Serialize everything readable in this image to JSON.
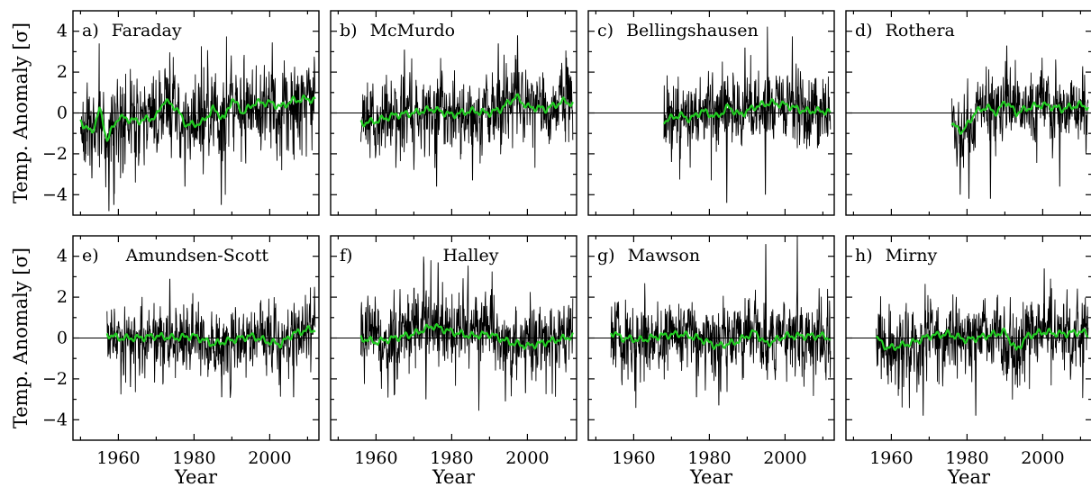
{
  "chart_data": {
    "type": "line",
    "layout": "2x4 panel grid",
    "shared_x_axis": {
      "label": "Year",
      "lim": [
        1948,
        2013
      ],
      "ticks": [
        1960,
        1980,
        2000
      ]
    },
    "shared_y_axis": {
      "label": "Temp. Anomaly [σ]",
      "lim": [
        -5,
        5
      ],
      "ticks": [
        -4,
        -2,
        0,
        2,
        4
      ]
    },
    "colors": {
      "monthly": "#000000",
      "smoothed": "#22cc22"
    },
    "panels": [
      {
        "letter": "a)",
        "station": "Faraday",
        "start": 1950,
        "end": 2012,
        "amp": 1.35,
        "seed": 11,
        "extremes": [
          [
            1957.5,
            -4.8
          ],
          [
            1958.8,
            -4.5
          ],
          [
            1977.6,
            -3.6
          ],
          [
            1987.2,
            -4.5
          ],
          [
            1953,
            -3.2
          ]
        ],
        "smooth": [
          [
            1950,
            -0.4
          ],
          [
            1953,
            -1.0
          ],
          [
            1955,
            0.2
          ],
          [
            1957,
            -1.3
          ],
          [
            1960,
            -0.2
          ],
          [
            1965,
            -0.4
          ],
          [
            1970,
            -0.2
          ],
          [
            1972,
            0.6
          ],
          [
            1975,
            0.3
          ],
          [
            1978,
            -0.6
          ],
          [
            1982,
            -0.5
          ],
          [
            1985,
            0.2
          ],
          [
            1988,
            -0.3
          ],
          [
            1990,
            0.7
          ],
          [
            1993,
            0.0
          ],
          [
            1996,
            0.5
          ],
          [
            2000,
            0.5
          ],
          [
            2003,
            0.3
          ],
          [
            2006,
            0.6
          ],
          [
            2010,
            0.7
          ],
          [
            2012,
            0.6
          ]
        ]
      },
      {
        "letter": "b)",
        "station": "McMurdo",
        "start": 1956,
        "end": 2012,
        "amp": 1.1,
        "seed": 23,
        "extremes": [
          [
            1967.5,
            3.1
          ],
          [
            1992.3,
            3.4
          ],
          [
            1997.4,
            3.8
          ],
          [
            1976,
            -3.6
          ],
          [
            1985.5,
            -3.3
          ]
        ],
        "smooth": [
          [
            1956,
            -0.5
          ],
          [
            1960,
            -0.4
          ],
          [
            1965,
            -0.1
          ],
          [
            1970,
            0.0
          ],
          [
            1975,
            0.2
          ],
          [
            1980,
            -0.1
          ],
          [
            1985,
            0.1
          ],
          [
            1990,
            0.0
          ],
          [
            1993,
            0.2
          ],
          [
            1997,
            0.8
          ],
          [
            2000,
            0.3
          ],
          [
            2005,
            0.2
          ],
          [
            2010,
            0.6
          ],
          [
            2012,
            0.4
          ]
        ]
      },
      {
        "letter": "c)",
        "station": "Bellingshausen",
        "start": 1968,
        "end": 2012,
        "amp": 1.05,
        "seed": 37,
        "extremes": [
          [
            1989.4,
            3.2
          ],
          [
            1984.6,
            -4.4
          ],
          [
            1994.8,
            -4.0
          ],
          [
            1970,
            -2.4
          ]
        ],
        "smooth": [
          [
            1968,
            -0.4
          ],
          [
            1972,
            -0.1
          ],
          [
            1975,
            -0.3
          ],
          [
            1978,
            0.1
          ],
          [
            1982,
            -0.2
          ],
          [
            1985,
            0.3
          ],
          [
            1988,
            -0.1
          ],
          [
            1992,
            0.3
          ],
          [
            1996,
            0.5
          ],
          [
            2000,
            0.4
          ],
          [
            2005,
            0.1
          ],
          [
            2010,
            0.1
          ],
          [
            2012,
            0.0
          ]
        ]
      },
      {
        "letter": "d)",
        "station": "Rothera",
        "start": 1976,
        "end": 2012,
        "amp": 1.05,
        "seed": 41,
        "extremes": [
          [
            1978.2,
            -4.0
          ],
          [
            1980.5,
            -4.2
          ],
          [
            1986.2,
            -4.2
          ],
          [
            1990.5,
            3.3
          ],
          [
            2004.5,
            -3.6
          ]
        ],
        "smooth": [
          [
            1976,
            -0.6
          ],
          [
            1979,
            -0.9
          ],
          [
            1982,
            0.0
          ],
          [
            1985,
            0.3
          ],
          [
            1988,
            0.0
          ],
          [
            1990,
            0.6
          ],
          [
            1993,
            0.0
          ],
          [
            1997,
            0.3
          ],
          [
            2000,
            0.4
          ],
          [
            2005,
            0.2
          ],
          [
            2010,
            0.4
          ],
          [
            2012,
            0.3
          ]
        ]
      },
      {
        "letter": "e)",
        "station": "Amundsen-Scott",
        "start": 1957,
        "end": 2012,
        "amp": 1.05,
        "seed": 53,
        "extremes": [
          [
            1987.3,
            -2.9
          ],
          [
            2006.3,
            -2.9
          ],
          [
            1963.2,
            -2.4
          ],
          [
            1973.6,
            2.9
          ]
        ],
        "smooth": [
          [
            1957,
            0.2
          ],
          [
            1960,
            0.0
          ],
          [
            1965,
            0.0
          ],
          [
            1970,
            0.1
          ],
          [
            1975,
            0.0
          ],
          [
            1980,
            0.1
          ],
          [
            1985,
            -0.3
          ],
          [
            1990,
            -0.1
          ],
          [
            1995,
            0.1
          ],
          [
            2000,
            -0.2
          ],
          [
            2003,
            -0.3
          ],
          [
            2006,
            0.2
          ],
          [
            2010,
            0.4
          ],
          [
            2012,
            0.4
          ]
        ]
      },
      {
        "letter": "f)",
        "station": "Halley",
        "start": 1956,
        "end": 2012,
        "amp": 1.1,
        "seed": 67,
        "extremes": [
          [
            1976.4,
            3.7
          ],
          [
            1964.8,
            -2.8
          ],
          [
            1973.2,
            -3.0
          ],
          [
            1994.2,
            -3.1
          ],
          [
            1999.5,
            -2.7
          ]
        ],
        "smooth": [
          [
            1956,
            0.0
          ],
          [
            1960,
            -0.2
          ],
          [
            1965,
            0.0
          ],
          [
            1970,
            0.2
          ],
          [
            1975,
            0.6
          ],
          [
            1980,
            0.3
          ],
          [
            1985,
            0.1
          ],
          [
            1990,
            0.2
          ],
          [
            1995,
            -0.2
          ],
          [
            2000,
            -0.4
          ],
          [
            2005,
            -0.2
          ],
          [
            2010,
            0.0
          ],
          [
            2012,
            0.1
          ]
        ]
      },
      {
        "letter": "g)",
        "station": "Mawson",
        "start": 1954,
        "end": 2012,
        "amp": 1.1,
        "seed": 79,
        "extremes": [
          [
            1994.9,
            4.6
          ],
          [
            1982.5,
            -3.3
          ],
          [
            1960.3,
            -2.6
          ],
          [
            1976.6,
            -2.9
          ]
        ],
        "smooth": [
          [
            1954,
            0.3
          ],
          [
            1957,
            0.0
          ],
          [
            1962,
            -0.1
          ],
          [
            1967,
            0.1
          ],
          [
            1972,
            0.2
          ],
          [
            1977,
            0.0
          ],
          [
            1982,
            -0.4
          ],
          [
            1987,
            -0.2
          ],
          [
            1992,
            0.3
          ],
          [
            1995,
            -0.3
          ],
          [
            2000,
            0.1
          ],
          [
            2005,
            0.1
          ],
          [
            2010,
            0.1
          ],
          [
            2012,
            0.0
          ]
        ]
      },
      {
        "letter": "h)",
        "station": "Mirny",
        "start": 1956,
        "end": 2012,
        "amp": 1.1,
        "seed": 83,
        "extremes": [
          [
            1968.4,
            -3.8
          ],
          [
            1982.3,
            -3.8
          ],
          [
            2000.4,
            3.4
          ],
          [
            1962,
            -2.5
          ]
        ],
        "smooth": [
          [
            1956,
            0.0
          ],
          [
            1959,
            -0.5
          ],
          [
            1962,
            -0.4
          ],
          [
            1966,
            -0.2
          ],
          [
            1970,
            0.1
          ],
          [
            1975,
            0.2
          ],
          [
            1980,
            -0.1
          ],
          [
            1985,
            0.1
          ],
          [
            1990,
            0.3
          ],
          [
            1993,
            -0.6
          ],
          [
            1996,
            0.1
          ],
          [
            2000,
            0.3
          ],
          [
            2005,
            0.2
          ],
          [
            2010,
            0.3
          ],
          [
            2012,
            0.2
          ]
        ]
      }
    ]
  }
}
